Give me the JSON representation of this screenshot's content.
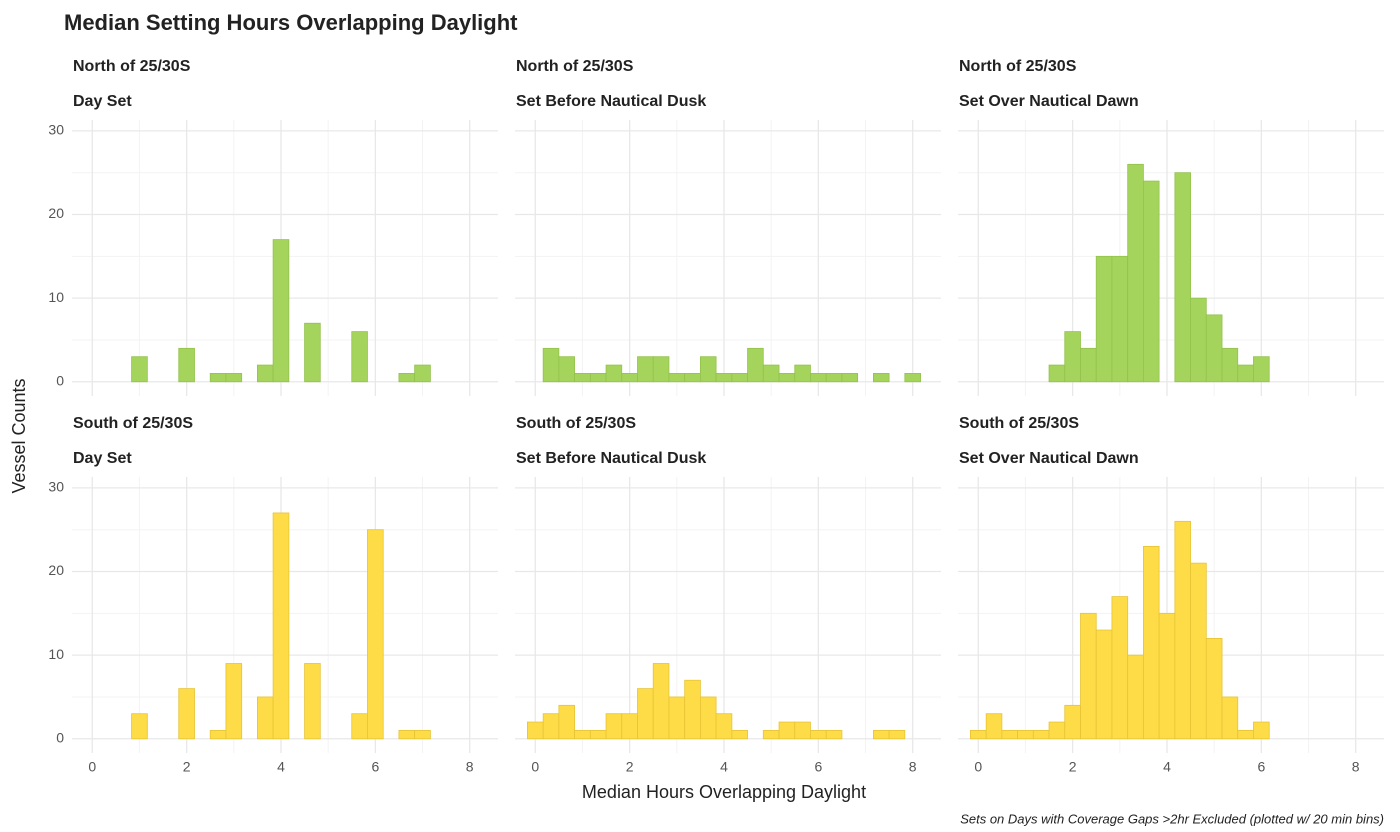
{
  "title": "Median Setting Hours Overlapping Daylight",
  "xlabel": "Median Hours Overlapping Daylight",
  "ylabel": "Vessel Counts",
  "caption": "Sets on Days with Coverage Gaps >2hr Excluded (plotted w/ 20 min bins)",
  "chart_data": [
    {
      "type": "histogram",
      "title": "North of 25/30S",
      "subtitle": "Day Set",
      "color": "#a5d45c",
      "edgecolor": "#93c24d",
      "bins": [
        -0.167,
        0.167,
        0.5,
        0.833,
        1.167,
        1.5,
        1.833,
        2.167,
        2.5,
        2.833,
        3.167,
        3.5,
        3.833,
        4.167,
        4.5,
        4.833,
        5.167,
        5.5,
        5.833,
        6.167,
        6.5,
        6.833,
        7.167,
        7.5,
        7.833,
        8.167
      ],
      "values": [
        0,
        0,
        0,
        3,
        0,
        0,
        4,
        0,
        1,
        1,
        0,
        2,
        17,
        0,
        7,
        0,
        0,
        6,
        0,
        0,
        1,
        2,
        0,
        0,
        0
      ],
      "xlim": [
        -0.43,
        8.6
      ],
      "ylim": [
        -1.7,
        31.3
      ],
      "xticks": [
        0,
        2,
        4,
        6,
        8
      ],
      "yticks": [
        0,
        10,
        20,
        30
      ],
      "xminor": [
        1,
        3,
        5,
        7
      ],
      "yminor": [
        5,
        15,
        25
      ],
      "grid": true
    },
    {
      "type": "histogram",
      "title": "North of 25/30S",
      "subtitle": "Set Before Nautical Dusk",
      "color": "#a5d45c",
      "edgecolor": "#93c24d",
      "bins": [
        -0.167,
        0.167,
        0.5,
        0.833,
        1.167,
        1.5,
        1.833,
        2.167,
        2.5,
        2.833,
        3.167,
        3.5,
        3.833,
        4.167,
        4.5,
        4.833,
        5.167,
        5.5,
        5.833,
        6.167,
        6.5,
        6.833,
        7.167,
        7.5,
        7.833,
        8.167
      ],
      "values": [
        0,
        4,
        3,
        1,
        1,
        2,
        1,
        3,
        3,
        1,
        1,
        3,
        1,
        1,
        4,
        2,
        1,
        2,
        1,
        1,
        1,
        0,
        1,
        0,
        1
      ],
      "xlim": [
        -0.43,
        8.6
      ],
      "ylim": [
        -1.7,
        31.3
      ],
      "xticks": [
        0,
        2,
        4,
        6,
        8
      ],
      "yticks": [
        0,
        10,
        20,
        30
      ],
      "xminor": [
        1,
        3,
        5,
        7
      ],
      "yminor": [
        5,
        15,
        25
      ],
      "grid": true
    },
    {
      "type": "histogram",
      "title": "North of 25/30S",
      "subtitle": "Set Over Nautical Dawn",
      "color": "#a5d45c",
      "edgecolor": "#93c24d",
      "bins": [
        -0.167,
        0.167,
        0.5,
        0.833,
        1.167,
        1.5,
        1.833,
        2.167,
        2.5,
        2.833,
        3.167,
        3.5,
        3.833,
        4.167,
        4.5,
        4.833,
        5.167,
        5.5,
        5.833,
        6.167,
        6.5,
        6.833,
        7.167,
        7.5,
        7.833,
        8.167
      ],
      "values": [
        0,
        0,
        0,
        0,
        0,
        2,
        6,
        4,
        15,
        15,
        26,
        24,
        0,
        25,
        10,
        8,
        4,
        2,
        3,
        0,
        0,
        0,
        0,
        0,
        0
      ],
      "xlim": [
        -0.43,
        8.6
      ],
      "ylim": [
        -1.7,
        31.3
      ],
      "xticks": [
        0,
        2,
        4,
        6,
        8
      ],
      "yticks": [
        0,
        10,
        20,
        30
      ],
      "xminor": [
        1,
        3,
        5,
        7
      ],
      "yminor": [
        5,
        15,
        25
      ],
      "grid": true
    },
    {
      "type": "histogram",
      "title": "South of 25/30S",
      "subtitle": "Day Set",
      "color": "#fedc48",
      "edgecolor": "#e6c435",
      "bins": [
        -0.167,
        0.167,
        0.5,
        0.833,
        1.167,
        1.5,
        1.833,
        2.167,
        2.5,
        2.833,
        3.167,
        3.5,
        3.833,
        4.167,
        4.5,
        4.833,
        5.167,
        5.5,
        5.833,
        6.167,
        6.5,
        6.833,
        7.167,
        7.5,
        7.833,
        8.167
      ],
      "values": [
        0,
        0,
        0,
        3,
        0,
        0,
        6,
        0,
        1,
        9,
        0,
        5,
        27,
        0,
        9,
        0,
        0,
        3,
        25,
        0,
        1,
        1,
        0,
        0,
        0
      ],
      "xlim": [
        -0.43,
        8.6
      ],
      "ylim": [
        -1.7,
        31.3
      ],
      "xticks": [
        0,
        2,
        4,
        6,
        8
      ],
      "yticks": [
        0,
        10,
        20,
        30
      ],
      "xminor": [
        1,
        3,
        5,
        7
      ],
      "yminor": [
        5,
        15,
        25
      ],
      "grid": true
    },
    {
      "type": "histogram",
      "title": "South of 25/30S",
      "subtitle": "Set Before Nautical Dusk",
      "color": "#fedc48",
      "edgecolor": "#e6c435",
      "bins": [
        -0.167,
        0.167,
        0.5,
        0.833,
        1.167,
        1.5,
        1.833,
        2.167,
        2.5,
        2.833,
        3.167,
        3.5,
        3.833,
        4.167,
        4.5,
        4.833,
        5.167,
        5.5,
        5.833,
        6.167,
        6.5,
        6.833,
        7.167,
        7.5,
        7.833,
        8.167
      ],
      "values": [
        2,
        3,
        4,
        1,
        1,
        3,
        3,
        6,
        9,
        5,
        7,
        5,
        3,
        1,
        0,
        1,
        2,
        2,
        1,
        1,
        0,
        0,
        1,
        1,
        0
      ],
      "xlim": [
        -0.43,
        8.6
      ],
      "ylim": [
        -1.7,
        31.3
      ],
      "xticks": [
        0,
        2,
        4,
        6,
        8
      ],
      "yticks": [
        0,
        10,
        20,
        30
      ],
      "xminor": [
        1,
        3,
        5,
        7
      ],
      "yminor": [
        5,
        15,
        25
      ],
      "grid": true
    },
    {
      "type": "histogram",
      "title": "South of 25/30S",
      "subtitle": "Set Over Nautical Dawn",
      "color": "#fedc48",
      "edgecolor": "#e6c435",
      "bins": [
        -0.167,
        0.167,
        0.5,
        0.833,
        1.167,
        1.5,
        1.833,
        2.167,
        2.5,
        2.833,
        3.167,
        3.5,
        3.833,
        4.167,
        4.5,
        4.833,
        5.167,
        5.5,
        5.833,
        6.167,
        6.5,
        6.833,
        7.167,
        7.5,
        7.833,
        8.167
      ],
      "values": [
        1,
        3,
        1,
        1,
        1,
        2,
        4,
        15,
        13,
        17,
        10,
        23,
        15,
        26,
        21,
        12,
        5,
        1,
        2,
        0,
        0,
        0,
        0,
        0,
        0
      ],
      "xlim": [
        -0.43,
        8.6
      ],
      "ylim": [
        -1.7,
        31.3
      ],
      "xticks": [
        0,
        2,
        4,
        6,
        8
      ],
      "yticks": [
        0,
        10,
        20,
        30
      ],
      "xminor": [
        1,
        3,
        5,
        7
      ],
      "yminor": [
        5,
        15,
        25
      ],
      "grid": true
    }
  ]
}
